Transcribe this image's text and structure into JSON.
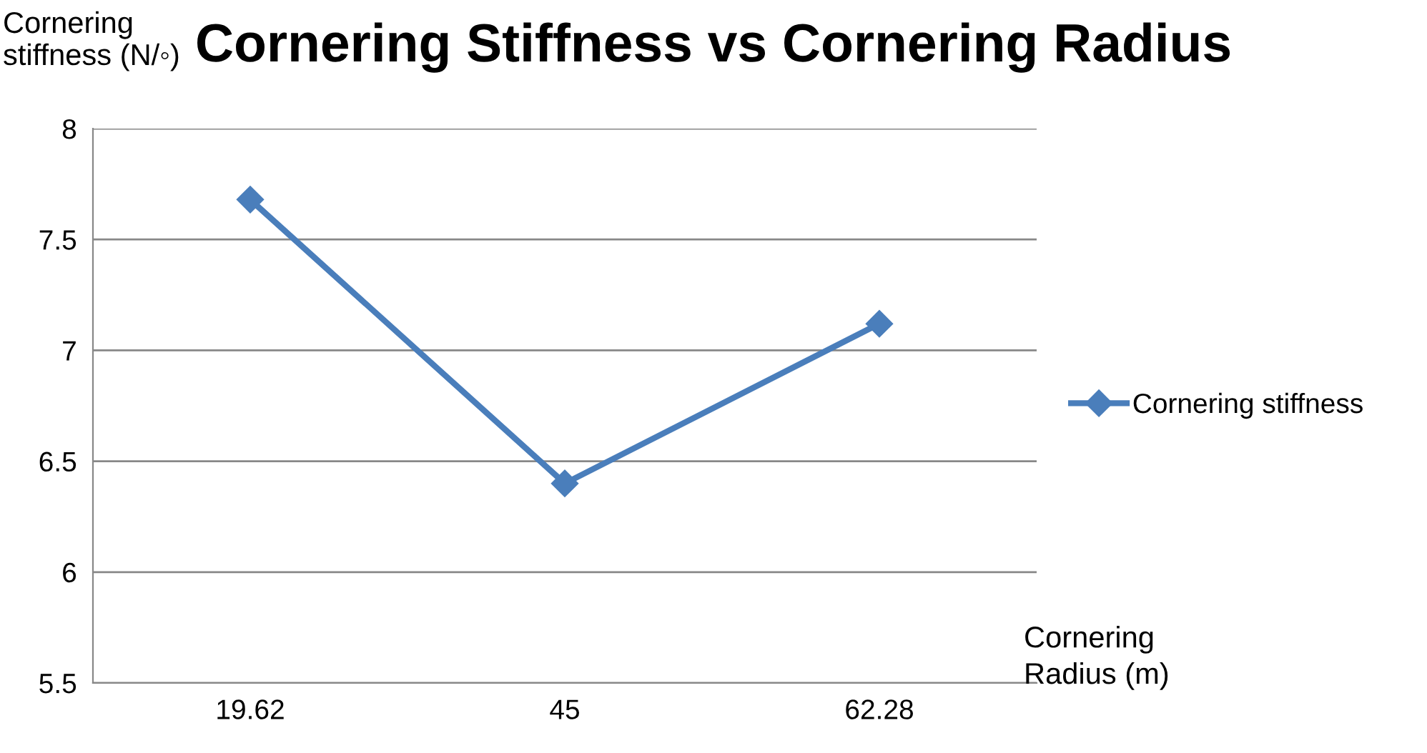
{
  "chart_data": {
    "type": "line",
    "title": "Cornering Stiffness vs Cornering Radius",
    "xlabel": "Cornering\nRadius (m)",
    "ylabel": "Cornering\nstiffness (N/◦)",
    "categories": [
      "19.62",
      "45",
      "62.28"
    ],
    "series": [
      {
        "name": "Cornering stiffness",
        "color": "#4a7ebb",
        "values": [
          7.68,
          6.4,
          7.12
        ]
      }
    ],
    "ylim": [
      5.5,
      8
    ],
    "yticks": [
      5.5,
      6,
      6.5,
      7,
      7.5,
      8
    ],
    "grid": "y",
    "legend": "right",
    "marker": "diamond",
    "line_style": "solid"
  }
}
